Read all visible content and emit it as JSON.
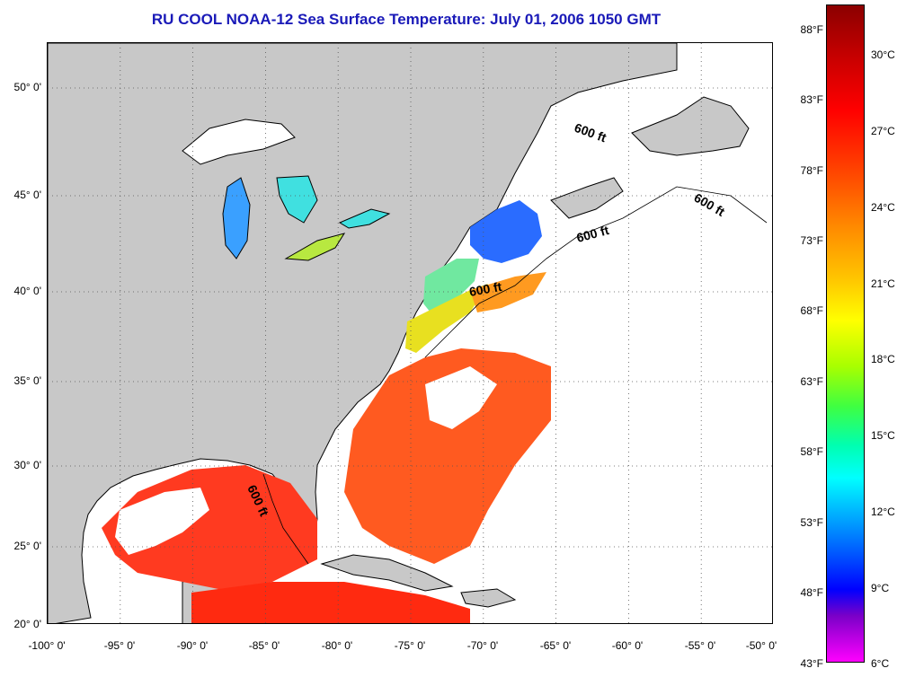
{
  "title": "RU COOL  NOAA-12  Sea Surface Temperature:  July 01, 2006 1050 GMT",
  "map": {
    "lat_labels": [
      "50° 0'",
      "45° 0'",
      "40° 0'",
      "35° 0'",
      "30° 0'",
      "25° 0'",
      "20° 0'"
    ],
    "lon_labels": [
      "-100° 0'",
      "-95° 0'",
      "-90° 0'",
      "-85° 0'",
      "-80° 0'",
      "-75° 0'",
      "-70° 0'",
      "-65° 0'",
      "-60° 0'",
      "-55° 0'",
      "-50° 0'"
    ],
    "depth_contour_label": "600 ft",
    "colors": {
      "land": "#c8c8c8",
      "cloud": "#ffffff",
      "grid": "#555555"
    }
  },
  "colorbar": {
    "fahrenheit": [
      "88°F",
      "83°F",
      "78°F",
      "73°F",
      "68°F",
      "63°F",
      "58°F",
      "53°F",
      "48°F",
      "43°F"
    ],
    "celsius": [
      "30°C",
      "27°C",
      "24°C",
      "21°C",
      "18°C",
      "15°C",
      "12°C",
      "9°C",
      "6°C"
    ]
  }
}
